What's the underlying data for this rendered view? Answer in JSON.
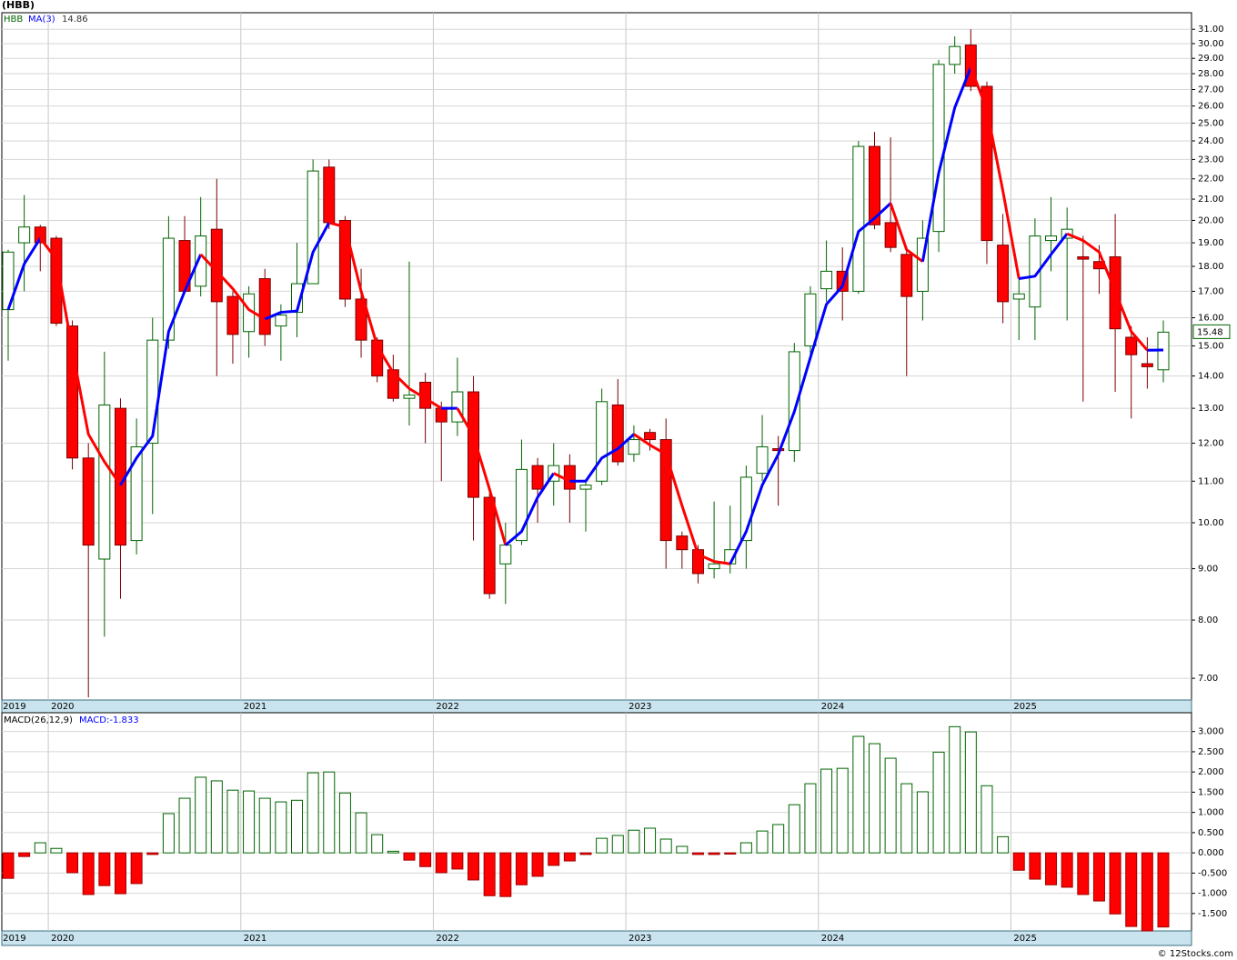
{
  "chart_data": [
    {
      "type": "candlestick",
      "title": "(HBB)",
      "name": "HBB",
      "log_scale": true,
      "grid": true,
      "up_color": "#006400",
      "down_color": "#ff0000",
      "categories": [
        "2019",
        null,
        null,
        "2020",
        null,
        null,
        null,
        null,
        null,
        null,
        null,
        null,
        null,
        null,
        null,
        "2021",
        null,
        null,
        null,
        null,
        null,
        null,
        null,
        null,
        null,
        null,
        null,
        "2022",
        null,
        null,
        null,
        null,
        null,
        null,
        null,
        null,
        null,
        null,
        null,
        "2023",
        null,
        null,
        null,
        null,
        null,
        null,
        null,
        null,
        null,
        null,
        null,
        "2024",
        null,
        null,
        null,
        null,
        null,
        null,
        null,
        null,
        null,
        null,
        null,
        "2025",
        null,
        null,
        null,
        null,
        null,
        null,
        null,
        null,
        null
      ],
      "open": [
        16.3,
        19.0,
        19.7,
        19.2,
        15.7,
        11.6,
        9.2,
        13.0,
        9.6,
        12.0,
        15.2,
        19.1,
        17.2,
        19.6,
        16.8,
        15.5,
        17.5,
        15.7,
        16.2,
        17.3,
        22.6,
        20.0,
        16.7,
        15.2,
        14.2,
        13.3,
        13.8,
        13.0,
        12.6,
        13.5,
        10.6,
        9.1,
        9.6,
        11.4,
        11.0,
        11.4,
        10.8,
        11.0,
        13.1,
        11.7,
        12.3,
        12.1,
        9.7,
        9.4,
        9.0,
        9.1,
        9.6,
        11.2,
        11.85,
        11.8,
        15.0,
        17.1,
        17.8,
        17.0,
        23.7,
        19.9,
        18.5,
        17.0,
        19.5,
        28.6,
        29.9,
        27.2,
        18.9,
        16.7,
        16.4,
        19.1,
        19.2,
        18.4,
        18.2,
        18.4,
        15.3,
        14.4,
        14.2
      ],
      "high": [
        18.7,
        21.2,
        19.8,
        19.3,
        15.9,
        12.0,
        14.8,
        13.3,
        12.7,
        16.0,
        20.2,
        20.2,
        21.1,
        22.0,
        17.0,
        17.2,
        17.9,
        16.5,
        19.0,
        23.0,
        23.0,
        20.2,
        17.9,
        15.3,
        14.7,
        18.2,
        14.1,
        13.2,
        14.6,
        14.0,
        10.7,
        10.0,
        12.1,
        11.6,
        12.0,
        11.7,
        11.0,
        13.6,
        13.9,
        12.5,
        12.4,
        12.7,
        9.8,
        9.5,
        10.5,
        10.4,
        11.4,
        12.8,
        12.2,
        15.1,
        17.2,
        19.1,
        18.8,
        24.0,
        24.5,
        24.2,
        18.8,
        20.0,
        28.9,
        30.5,
        31.0,
        27.5,
        20.3,
        17.6,
        20.1,
        21.1,
        20.6,
        19.3,
        18.9,
        20.3,
        15.7,
        15.3,
        15.9
      ],
      "low": [
        14.5,
        17.0,
        17.8,
        15.7,
        11.3,
        6.7,
        7.7,
        8.4,
        9.3,
        10.2,
        14.9,
        16.9,
        16.8,
        14.0,
        14.4,
        14.6,
        15.0,
        14.5,
        15.3,
        17.3,
        19.6,
        16.4,
        14.6,
        13.8,
        13.2,
        12.5,
        12.0,
        11.0,
        12.2,
        9.6,
        8.4,
        8.3,
        9.5,
        10.0,
        10.4,
        10.0,
        9.8,
        10.9,
        11.4,
        11.5,
        11.8,
        9.0,
        9.0,
        8.7,
        8.8,
        8.9,
        9.0,
        11.0,
        10.4,
        11.5,
        14.7,
        16.6,
        15.9,
        16.9,
        19.6,
        18.6,
        14.0,
        15.9,
        18.6,
        28.0,
        26.9,
        18.1,
        15.8,
        15.2,
        15.2,
        17.8,
        15.9,
        13.2,
        16.9,
        13.5,
        12.7,
        13.6,
        13.8
      ],
      "close": [
        18.6,
        19.7,
        19.0,
        15.8,
        11.6,
        9.5,
        13.1,
        9.5,
        11.9,
        15.2,
        19.2,
        17.0,
        19.3,
        16.6,
        15.4,
        16.9,
        15.4,
        16.1,
        17.3,
        22.4,
        19.9,
        16.7,
        15.2,
        14.0,
        13.3,
        13.4,
        13.0,
        12.6,
        13.5,
        10.6,
        8.5,
        9.5,
        11.3,
        10.8,
        11.4,
        10.8,
        10.9,
        13.2,
        11.5,
        12.1,
        12.1,
        9.6,
        9.4,
        8.9,
        9.1,
        9.4,
        11.1,
        11.9,
        11.8,
        14.8,
        16.9,
        17.8,
        17.0,
        23.7,
        19.8,
        18.8,
        16.8,
        19.2,
        28.6,
        29.8,
        27.2,
        19.1,
        16.6,
        16.9,
        19.3,
        19.3,
        19.6,
        18.3,
        17.9,
        15.6,
        14.7,
        14.3,
        15.48
      ],
      "series": [
        {
          "name": "MA(3)",
          "color": "#0000ff",
          "up_color": "#0000ff",
          "down_color": "#ff0000",
          "values": [
            16.3,
            18.1,
            19.2,
            18.3,
            14.85,
            12.25,
            11.5,
            10.9,
            11.6,
            12.2,
            15.5,
            17.0,
            18.5,
            17.8,
            17.1,
            16.3,
            15.95,
            16.2,
            16.25,
            18.6,
            19.9,
            19.7,
            17.0,
            15.0,
            14.1,
            13.6,
            13.3,
            13.0,
            13.0,
            12.2,
            10.8,
            9.5,
            9.8,
            10.6,
            11.2,
            11.0,
            11.0,
            11.6,
            11.85,
            12.25,
            11.95,
            11.7,
            10.4,
            9.3,
            9.15,
            9.1,
            9.8,
            10.9,
            11.7,
            12.9,
            14.6,
            16.5,
            17.2,
            19.5,
            20.1,
            20.8,
            18.7,
            18.2,
            22.3,
            25.9,
            28.4,
            25.8,
            21.4,
            17.5,
            17.6,
            18.5,
            19.4,
            19.1,
            18.6,
            17.0,
            15.5,
            14.85,
            14.86
          ]
        }
      ],
      "ylim": [
        6.66,
        32.2
      ],
      "yticks": [
        {
          "value": 7,
          "label": "7.00"
        },
        {
          "value": 8,
          "label": "8.00"
        },
        {
          "value": 9,
          "label": "9.00"
        },
        {
          "value": 10,
          "label": "10.00"
        },
        {
          "value": 11,
          "label": "11.00"
        },
        {
          "value": 12,
          "label": "12.00"
        },
        {
          "value": 13,
          "label": "13.00"
        },
        {
          "value": 14,
          "label": "14.00"
        },
        {
          "value": 15,
          "label": "15.00"
        },
        {
          "value": 16,
          "label": "16.00"
        },
        {
          "value": 17,
          "label": "17.00"
        },
        {
          "value": 18,
          "label": "18.00"
        },
        {
          "value": 19,
          "label": "19.00"
        },
        {
          "value": 20,
          "label": "20.00"
        },
        {
          "value": 21,
          "label": "21.00"
        },
        {
          "value": 22,
          "label": "22.00"
        },
        {
          "value": 23,
          "label": "23.00"
        },
        {
          "value": 24,
          "label": "24.00"
        },
        {
          "value": 25,
          "label": "25.00"
        },
        {
          "value": 26,
          "label": "26.00"
        },
        {
          "value": 27,
          "label": "27.00"
        },
        {
          "value": 28,
          "label": "28.00"
        },
        {
          "value": 29,
          "label": "29.00"
        },
        {
          "value": 30,
          "label": "30.00"
        },
        {
          "value": 31,
          "label": "31.00"
        }
      ]
    },
    {
      "type": "bar",
      "title": "MACD(26,12,9)",
      "legend": "MACD:-1.833",
      "grid": true,
      "positive_color": "#006400",
      "negative_color": "#ff0000",
      "series": [
        {
          "name": "MACD",
          "values": [
            -0.63,
            -0.09,
            0.25,
            0.11,
            -0.49,
            -1.03,
            -0.81,
            -1.01,
            -0.76,
            -0.04,
            0.97,
            1.35,
            1.87,
            1.78,
            1.55,
            1.53,
            1.35,
            1.26,
            1.3,
            1.98,
            2.0,
            1.48,
            0.99,
            0.45,
            0.04,
            -0.18,
            -0.34,
            -0.49,
            -0.4,
            -0.67,
            -1.06,
            -1.08,
            -0.79,
            -0.58,
            -0.31,
            -0.2,
            -0.04,
            0.36,
            0.43,
            0.56,
            0.61,
            0.34,
            0.16,
            -0.04,
            -0.04,
            -0.03,
            0.25,
            0.54,
            0.7,
            1.19,
            1.71,
            2.07,
            2.09,
            2.88,
            2.7,
            2.34,
            1.71,
            1.51,
            2.49,
            3.12,
            2.99,
            1.66,
            0.4,
            -0.43,
            -0.65,
            -0.79,
            -0.85,
            -1.03,
            -1.19,
            -1.51,
            -1.82,
            -1.93,
            -1.833
          ]
        }
      ],
      "ylim": [
        -1.93,
        3.42
      ],
      "yticks": [
        {
          "value": -1.5,
          "label": "-1.500"
        },
        {
          "value": -1,
          "label": "-1.000"
        },
        {
          "value": -0.5,
          "label": "-0.500"
        },
        {
          "value": 0,
          "label": "0.000"
        },
        {
          "value": 0.5,
          "label": "0.500"
        },
        {
          "value": 1,
          "label": "1.000"
        },
        {
          "value": 1.5,
          "label": "1.500"
        },
        {
          "value": 2,
          "label": "2.000"
        },
        {
          "value": 2.5,
          "label": "2.500"
        },
        {
          "value": 3,
          "label": "3.000"
        }
      ]
    },
    {
      "type": "credit",
      "text": "© 12Stocks.com"
    }
  ]
}
